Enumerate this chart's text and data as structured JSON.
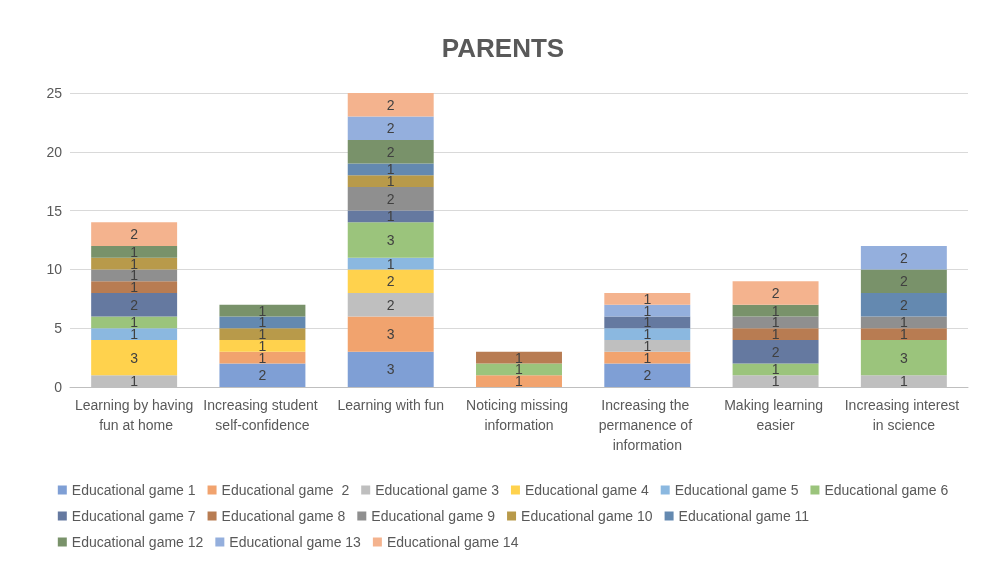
{
  "chart_data": {
    "type": "bar",
    "title": "PARENTS",
    "stacked": true,
    "data_labels": true,
    "grid": "y",
    "legend": "bottom",
    "ylim": [
      0,
      25
    ],
    "yticks": [
      0,
      5,
      10,
      15,
      20,
      25
    ],
    "categories": [
      "Learning by having fun at home",
      "Increasing student self-confidence",
      "Learning with fun",
      "Noticing missing information",
      "Increasing the permanence of information",
      "Making learning easier",
      "Increasing interest in science"
    ],
    "series": [
      {
        "name": "Educational game 1",
        "color": "#7f9fd5",
        "values": [
          null,
          2,
          3,
          null,
          2,
          null,
          null
        ]
      },
      {
        "name": "Educational game  2",
        "color": "#f1a36e",
        "values": [
          null,
          1,
          3,
          1,
          1,
          null,
          null
        ]
      },
      {
        "name": "Educational game 3",
        "color": "#bfbfbf",
        "values": [
          1,
          null,
          2,
          null,
          1,
          1,
          1
        ]
      },
      {
        "name": "Educational game 4",
        "color": "#ffd24d",
        "values": [
          3,
          1,
          2,
          null,
          null,
          null,
          null
        ]
      },
      {
        "name": "Educational game 5",
        "color": "#8bb8e0",
        "values": [
          1,
          null,
          1,
          null,
          1,
          null,
          null
        ]
      },
      {
        "name": "Educational game 6",
        "color": "#9bc47c",
        "values": [
          1,
          null,
          3,
          1,
          null,
          1,
          3
        ]
      },
      {
        "name": "Educational game 7",
        "color": "#6579a0",
        "values": [
          2,
          null,
          1,
          null,
          1,
          2,
          null
        ]
      },
      {
        "name": "Educational game 8",
        "color": "#b87c52",
        "values": [
          1,
          null,
          null,
          1,
          null,
          1,
          1
        ]
      },
      {
        "name": "Educational game 9",
        "color": "#8f8f8f",
        "values": [
          1,
          null,
          2,
          null,
          null,
          1,
          1
        ]
      },
      {
        "name": "Educational game 10",
        "color": "#b89a4a",
        "values": [
          1,
          1,
          1,
          null,
          null,
          null,
          null
        ]
      },
      {
        "name": "Educational game 11",
        "color": "#6489b0",
        "values": [
          null,
          1,
          1,
          null,
          null,
          null,
          2
        ]
      },
      {
        "name": "Educational game 12",
        "color": "#79926a",
        "values": [
          1,
          1,
          2,
          null,
          null,
          1,
          2
        ]
      },
      {
        "name": "Educational game 13",
        "color": "#94afdd",
        "values": [
          null,
          null,
          2,
          null,
          1,
          null,
          2
        ]
      },
      {
        "name": "Educational game 14",
        "color": "#f4b38e",
        "values": [
          2,
          null,
          2,
          null,
          1,
          2,
          null
        ]
      }
    ]
  }
}
